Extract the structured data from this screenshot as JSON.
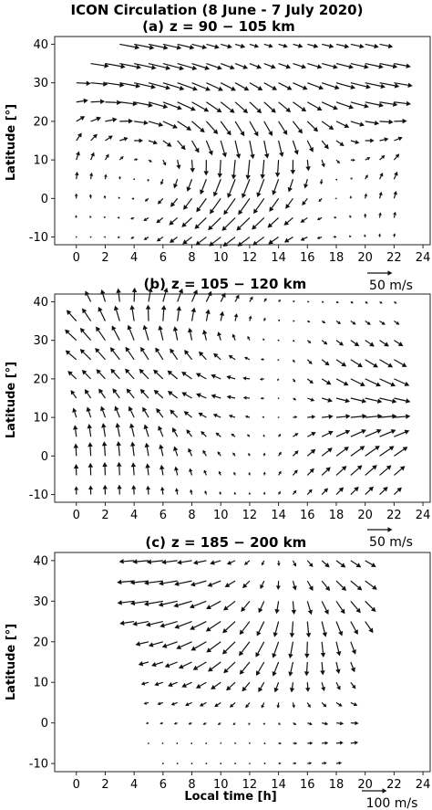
{
  "figure": {
    "title": "ICON Circulation (8 June - 7 July 2020)",
    "xlabel": "Local time [h]",
    "ylabel": "Latitude [°]"
  },
  "chart_data": [
    {
      "type": "quiver",
      "label": "(a)",
      "altitude": "z = 90 − 105 km",
      "xlim": [
        -1.5,
        24.5
      ],
      "ylim": [
        -12,
        42
      ],
      "xticks": [
        0,
        2,
        4,
        6,
        8,
        10,
        12,
        14,
        16,
        18,
        20,
        22,
        24
      ],
      "yticks": [
        -10,
        0,
        10,
        20,
        30,
        40
      ],
      "key": {
        "value": 50,
        "label": "50 m/s"
      },
      "x_start": 0,
      "x_step": 1,
      "x_count": 23,
      "lat": [
        40,
        35,
        30,
        25,
        20,
        15,
        10,
        5,
        0,
        -5,
        -10
      ],
      "mask": [
        "...XXXXXXXXXXXXXXXXXXX.",
        ".XXXXXXXXXXXXXXXXXXXXXX",
        "XXXXXXXXXXXXXXXXXXXXXXX",
        "XXXXXXXXXXXXXXXXXXXXXXX",
        "XXXXXXXXXXXXXXXXXXXXXXX",
        "XXXXXXXXXXXXXXXXXXXXXXX",
        "XXXXXXXXXXXXXXXXXXXXXXX",
        "XXXXXXXXXXXXXXXXXXXXXXX",
        "XXXXXXXXXXXXXXXXXXXXXXX",
        "XXXXXXXXXXXXXXXXXXXXXXX",
        "XXXXXXXXXXXXXXXXXXXXXXX"
      ],
      "vortices": [
        {
          "x": 3,
          "y": 40,
          "u": 30,
          "v": -4
        },
        {
          "x": 6,
          "y": 25,
          "u": 28,
          "v": -12
        },
        {
          "x": 13,
          "y": 10,
          "u": -3,
          "v": -38
        },
        {
          "x": 12,
          "y": -5,
          "u": -30,
          "v": -18
        },
        {
          "x": 20,
          "y": 30,
          "u": 40,
          "v": -8
        },
        {
          "x": 0,
          "y": 12,
          "u": 0,
          "v": 22
        },
        {
          "x": 18,
          "y": 0,
          "u": 10,
          "v": 15
        },
        {
          "x": 22,
          "y": 8,
          "u": 0,
          "v": 15
        }
      ]
    },
    {
      "type": "quiver",
      "label": "(b)",
      "altitude": "z = 105 − 120 km",
      "xlim": [
        -1.5,
        24.5
      ],
      "ylim": [
        -12,
        42
      ],
      "xticks": [
        0,
        2,
        4,
        6,
        8,
        10,
        12,
        14,
        16,
        18,
        20,
        22,
        24
      ],
      "yticks": [
        -10,
        0,
        10,
        20,
        30,
        40
      ],
      "key": {
        "value": 50,
        "label": "50 m/s"
      },
      "x_start": 0,
      "x_step": 1,
      "x_count": 23,
      "lat": [
        40,
        35,
        30,
        25,
        20,
        15,
        10,
        5,
        0,
        -5,
        -10
      ],
      "mask": [
        ".XXXXXXXXXXXXXXXXXXXXXX",
        "XXXXXXXXXXXXXXXXXXXXXXX",
        "XXXXXXXXXXXXXXXXXXXXXXX",
        "XXXXXXXXXXXXXXXXXXXXXXX",
        "XXXXXXXXXXXXXXXXXXXXXXX",
        "XXXXXXXXXXXXXXXXXXXXXXX",
        "XXXXXXXXXXXXXXXXXXXXXXX",
        "XXXXXXXXXXXXXXXXXXXXXXX",
        "XXXXXXXXXXXXXXXXXXXXXXX",
        "XXXXXXXXXXXXXXXXXXXXXXX",
        "XXXXXXXXXXXXXXXXXXXXXXX"
      ],
      "vortices": [
        {
          "x": 6,
          "y": 35,
          "u": 34,
          "v": 26
        },
        {
          "x": 1,
          "y": 32,
          "u": -36,
          "v": 10
        },
        {
          "x": 3,
          "y": 0,
          "u": 0,
          "v": 30
        },
        {
          "x": 10,
          "y": 22,
          "u": -30,
          "v": 0
        },
        {
          "x": 20,
          "y": 20,
          "u": 30,
          "v": -20
        },
        {
          "x": 19,
          "y": 0,
          "u": 30,
          "v": 30
        },
        {
          "x": 14,
          "y": 0,
          "u": -12,
          "v": -10
        }
      ]
    },
    {
      "type": "quiver",
      "label": "(c)",
      "altitude": "z = 185 − 200 km",
      "xlim": [
        -1.5,
        24.5
      ],
      "ylim": [
        -12,
        42
      ],
      "xticks": [
        0,
        2,
        4,
        6,
        8,
        10,
        12,
        14,
        16,
        18,
        20,
        22,
        24
      ],
      "yticks": [
        -10,
        0,
        10,
        20,
        30,
        40
      ],
      "key": {
        "value": 100,
        "label": "100 m/s"
      },
      "x_start": 0,
      "x_step": 1,
      "x_count": 23,
      "lat": [
        40,
        35,
        30,
        25,
        20,
        15,
        10,
        5,
        0,
        -5,
        -10
      ],
      "mask": [
        "....XXXXXXXXXXXXXXXXX..",
        "....XXXXXXXXXXXXXXXXX..",
        "....XXXXXXXXXXXXXXXXX..",
        "....XXXXXXXXXXXXXXXXX..",
        ".....XXXXXXXXXXXXXXX...",
        ".....XXXXXXXXXXXXXXX...",
        ".....XXXXXXXXXXXXXXX...",
        ".....XXXXXXXXXXXXXXX...",
        ".....XXXXXXXXXXXXXXX...",
        ".....XXXXXXXXXXXXXXX...",
        "......XXXXXXXXXXXXX...."
      ],
      "vortices": [
        {
          "x": 6,
          "y": 35,
          "u": -70,
          "v": -4
        },
        {
          "x": 10,
          "y": 15,
          "u": -45,
          "v": -5
        },
        {
          "x": 15,
          "y": 20,
          "u": 0,
          "v": -60
        },
        {
          "x": 20,
          "y": 35,
          "u": 50,
          "v": -20
        },
        {
          "x": 19,
          "y": 0,
          "u": 35,
          "v": 8
        }
      ]
    }
  ]
}
